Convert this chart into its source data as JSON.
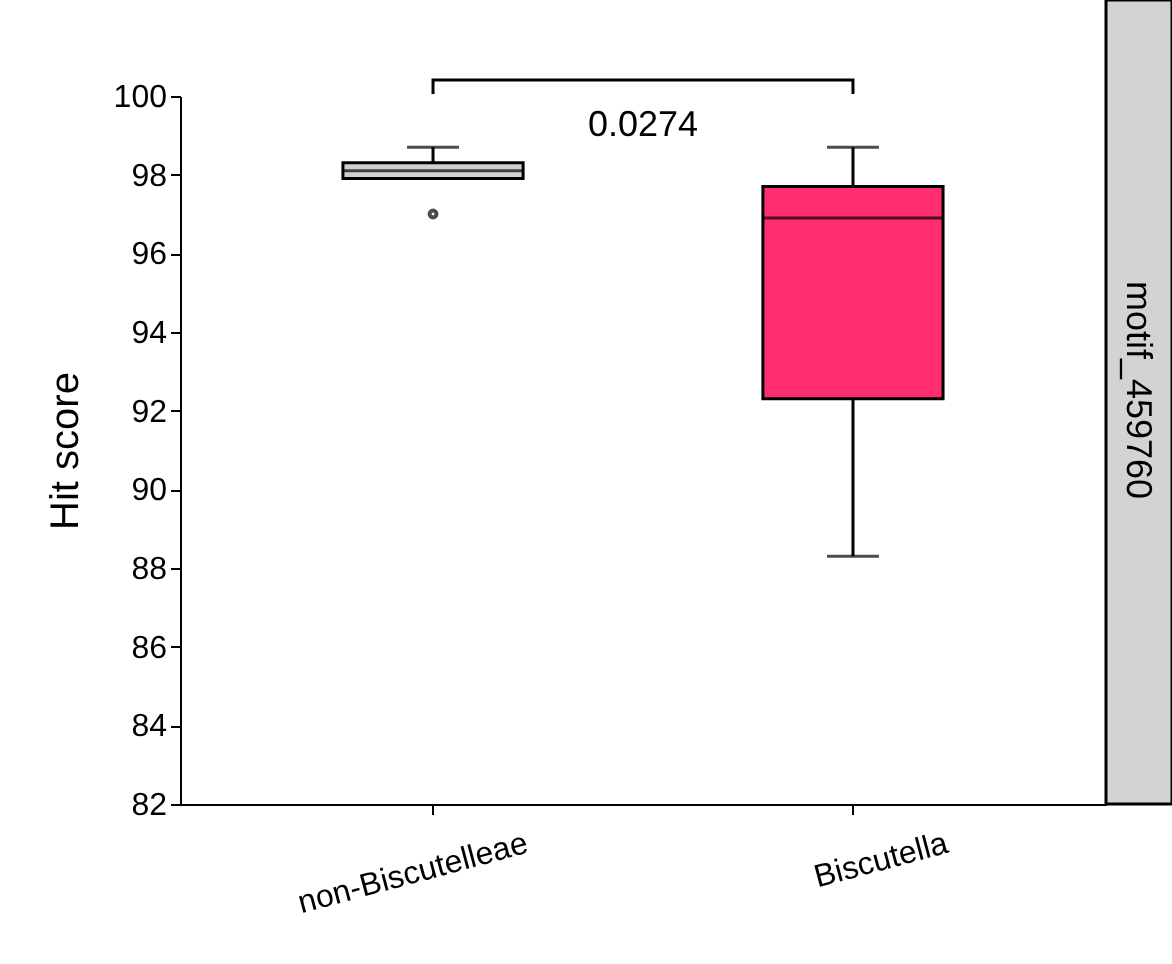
{
  "chart_data": {
    "type": "box",
    "ylabel": "Hit score",
    "categories": [
      "non-Biscutelleae",
      "Biscutella"
    ],
    "boxes": [
      {
        "low": 97.9,
        "q1": 97.9,
        "median": 98.1,
        "q3": 98.3,
        "high": 98.7,
        "outliers": [
          97.0
        ]
      },
      {
        "low": 88.3,
        "q1": 92.3,
        "median": 96.9,
        "q3": 97.7,
        "high": 98.7
      }
    ],
    "colors": [
      "#d0d0d0",
      "#ff2d6f"
    ],
    "ylim": [
      82,
      100
    ],
    "yticks": [
      82,
      84,
      86,
      88,
      90,
      92,
      94,
      96,
      98,
      100
    ],
    "annotations": [
      "0.0274",
      "motif_459760"
    ]
  }
}
